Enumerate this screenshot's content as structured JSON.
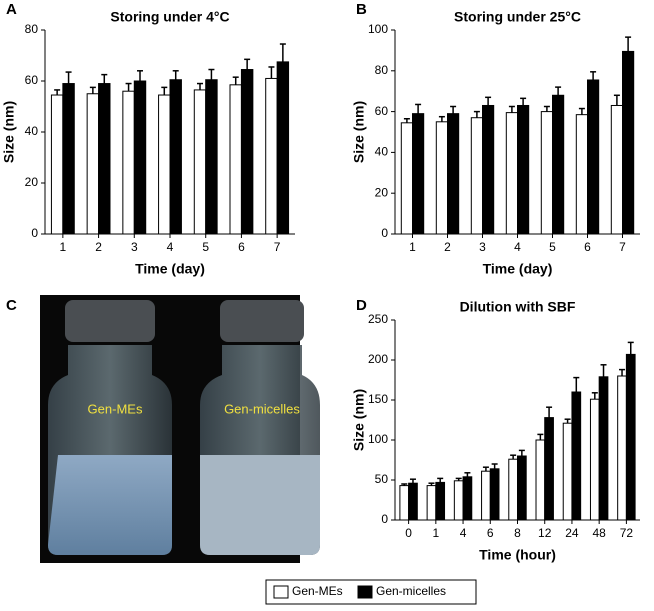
{
  "chart_data": [
    {
      "type": "bar",
      "panel": "A",
      "title": "Storing under 4°C",
      "x_label": "Time (day)",
      "y_label": "Size (nm)",
      "categories": [
        "1",
        "2",
        "3",
        "4",
        "5",
        "6",
        "7"
      ],
      "series": [
        {
          "name": "Gen-MEs",
          "color": "#ffffff",
          "values": [
            54.5,
            55,
            56,
            54.5,
            56.5,
            58.5,
            61
          ],
          "errors": [
            2,
            2.5,
            3,
            3,
            2.5,
            3,
            4.5
          ]
        },
        {
          "name": "Gen-micelles",
          "color": "#000000",
          "values": [
            59,
            59,
            60,
            60.5,
            60.5,
            64.5,
            67.5
          ],
          "errors": [
            4.5,
            3.5,
            4,
            3.5,
            4,
            4,
            7
          ]
        }
      ],
      "ylim": [
        0,
        80
      ],
      "yticks": [
        0,
        20,
        40,
        60,
        80
      ]
    },
    {
      "type": "bar",
      "panel": "B",
      "title": "Storing under 25°C",
      "x_label": "Time (day)",
      "y_label": "Size (nm)",
      "categories": [
        "1",
        "2",
        "3",
        "4",
        "5",
        "6",
        "7"
      ],
      "series": [
        {
          "name": "Gen-MEs",
          "color": "#ffffff",
          "values": [
            54.5,
            55,
            57,
            59.5,
            60,
            58.5,
            63
          ],
          "errors": [
            2,
            2.5,
            3,
            3,
            2.5,
            3,
            5
          ]
        },
        {
          "name": "Gen-micelles",
          "color": "#000000",
          "values": [
            59,
            59,
            63,
            63,
            68,
            75.5,
            89.5
          ],
          "errors": [
            4.5,
            3.5,
            4,
            3.5,
            4,
            4,
            7
          ]
        }
      ],
      "ylim": [
        0,
        100
      ],
      "yticks": [
        0,
        20,
        40,
        60,
        80,
        100
      ]
    },
    {
      "type": "bar",
      "panel": "D",
      "title": "Dilution with SBF",
      "x_label": "Time (hour)",
      "y_label": "Size (nm)",
      "categories": [
        "0",
        "1",
        "4",
        "6",
        "8",
        "12",
        "24",
        "48",
        "72"
      ],
      "series": [
        {
          "name": "Gen-MEs",
          "color": "#ffffff",
          "values": [
            43,
            43,
            49,
            61,
            76,
            100,
            121,
            151,
            180
          ],
          "errors": [
            2,
            3,
            3,
            5,
            5,
            7,
            5,
            8,
            8
          ]
        },
        {
          "name": "Gen-micelles",
          "color": "#000000",
          "values": [
            46,
            47,
            54,
            64,
            80,
            128,
            160,
            179,
            207
          ],
          "errors": [
            5,
            5,
            5,
            6,
            7,
            13,
            18,
            15,
            15
          ]
        }
      ],
      "ylim": [
        0,
        250
      ],
      "yticks": [
        0,
        50,
        100,
        150,
        200,
        250
      ]
    }
  ],
  "photo": {
    "panel": "C",
    "labels": [
      "Gen-MEs",
      "Gen-micelles"
    ]
  }
}
